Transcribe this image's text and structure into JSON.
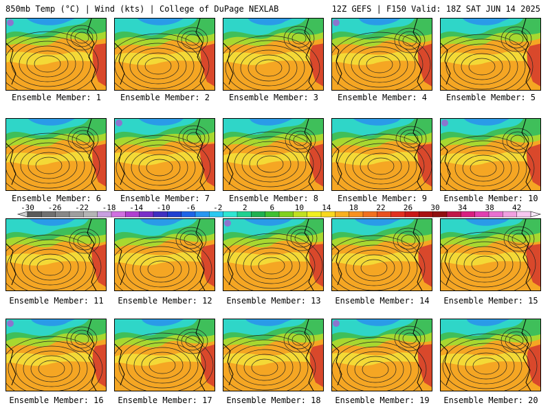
{
  "header": {
    "left": "850mb Temp (°C) | Wind (kts) | College of DuPage NEXLAB",
    "right": "12Z GEFS | F150 Valid: 18Z SAT JUN 14 2025"
  },
  "caption_prefix": "Ensemble Member:",
  "members": [
    "Ensemble Member: 1",
    "Ensemble Member: 2",
    "Ensemble Member: 3",
    "Ensemble Member: 4",
    "Ensemble Member: 5",
    "Ensemble Member: 6",
    "Ensemble Member: 7",
    "Ensemble Member: 8",
    "Ensemble Member: 9",
    "Ensemble Member: 10",
    "Ensemble Member: 11",
    "Ensemble Member: 12",
    "Ensemble Member: 13",
    "Ensemble Member: 14",
    "Ensemble Member: 15",
    "Ensemble Member: 16",
    "Ensemble Member: 17",
    "Ensemble Member: 18",
    "Ensemble Member: 19",
    "Ensemble Member: 20"
  ],
  "colorbar": {
    "tick_labels": [
      "-30",
      "-26",
      "-22",
      "-18",
      "-14",
      "-10",
      "-6",
      "-2",
      "2",
      "6",
      "10",
      "14",
      "18",
      "22",
      "26",
      "30",
      "34",
      "38",
      "42"
    ],
    "colors": [
      "#5a5a5a",
      "#707070",
      "#878787",
      "#9e9e9e",
      "#b4b4b4",
      "#c8a0e0",
      "#d070e0",
      "#b040d0",
      "#7a30c8",
      "#4030c0",
      "#2040d0",
      "#1e64e6",
      "#2896f0",
      "#2cc8f0",
      "#30e6d2",
      "#20d090",
      "#20b050",
      "#40c030",
      "#80d020",
      "#c0e020",
      "#f0f020",
      "#f8d820",
      "#f8b020",
      "#f89020",
      "#f07020",
      "#e85020",
      "#e03020",
      "#c81818",
      "#a81010",
      "#901010",
      "#c01848",
      "#d82080",
      "#e040b0",
      "#e870d0",
      "#f0a0e0",
      "#f8c8f0"
    ],
    "min": -30,
    "max": 42,
    "step": 2
  },
  "panel_colors": {
    "warm": "#f5a623",
    "hot": "#d9482b",
    "cool": "#2fd6c8",
    "cold": "#2a9be8",
    "mild": "#3fbf5a",
    "lime": "#a8d830",
    "yellow": "#f3e23a",
    "purple": "#b24bd1"
  }
}
